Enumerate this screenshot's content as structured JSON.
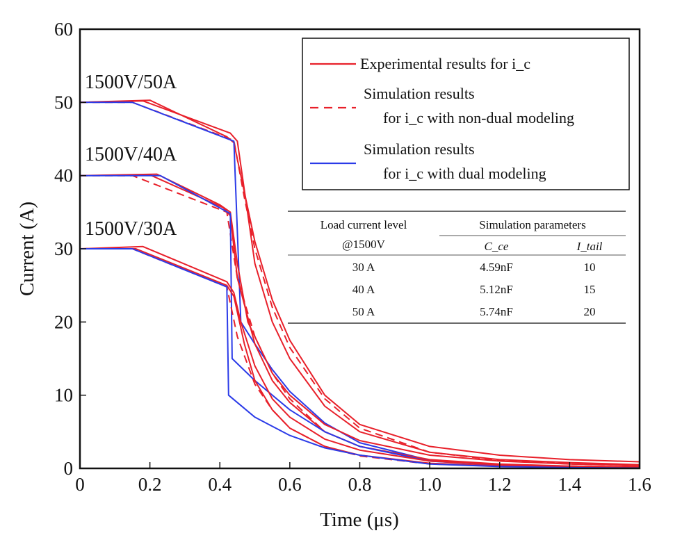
{
  "chart_data": {
    "type": "line",
    "xlabel": "Time (μs)",
    "ylabel": "Current (A)",
    "xlim": [
      0,
      1.6
    ],
    "ylim": [
      0,
      60
    ],
    "xticks": [
      "0",
      "0.2",
      "0.4",
      "0.6",
      "0.8",
      "1.0",
      "1.2",
      "1.4",
      "1.6"
    ],
    "yticks": [
      "0",
      "10",
      "20",
      "30",
      "40",
      "50",
      "60"
    ],
    "grid": false,
    "legend_position": "top-right",
    "legend": [
      {
        "lines": [
          "Experimental results for i_c"
        ],
        "color": "#e8202a",
        "style": "solid"
      },
      {
        "lines": [
          "Simulation results",
          "for i_c with non-dual modeling"
        ],
        "color": "#e8202a",
        "style": "dashed"
      },
      {
        "lines": [
          "Simulation results",
          "for i_c with dual modeling"
        ],
        "color": "#2b3be8",
        "style": "solid"
      }
    ],
    "annotations": [
      "1500V/50A",
      "1500V/40A",
      "1500V/30A"
    ],
    "table": {
      "header_left": [
        "Load current level",
        "@1500V"
      ],
      "header_group": "Simulation parameters",
      "columns": [
        "C_ce",
        "I_tail"
      ],
      "rows": [
        [
          "30 A",
          "4.59nF",
          "10"
        ],
        [
          "40 A",
          "5.12nF",
          "15"
        ],
        [
          "50 A",
          "5.74nF",
          "20"
        ]
      ]
    },
    "series": [
      {
        "color": "#e8202a",
        "style": "solid",
        "x": [
          0,
          0.2,
          0.42,
          0.44,
          0.46,
          0.5,
          0.55,
          0.6,
          0.7,
          0.8,
          1.0,
          1.2,
          1.4,
          1.6
        ],
        "y": [
          50,
          50.3,
          45.3,
          44.5,
          40,
          31,
          23,
          17.5,
          10,
          6,
          3,
          1.8,
          1.2,
          0.9
        ]
      },
      {
        "color": "#e8202a",
        "style": "solid",
        "x": [
          0,
          0.18,
          0.43,
          0.45,
          0.47,
          0.5,
          0.55,
          0.6,
          0.7,
          0.8,
          1.0,
          1.2,
          1.4,
          1.6
        ],
        "y": [
          50,
          50.2,
          45.8,
          44.7,
          38,
          28,
          20,
          15,
          8.5,
          5,
          2.2,
          1.2,
          0.8,
          0.5
        ]
      },
      {
        "color": "#e8202a",
        "style": "dashed",
        "x": [
          0,
          0.15,
          0.44,
          0.47,
          0.5,
          0.55,
          0.6,
          0.7,
          0.8,
          1.0,
          1.2,
          1.4,
          1.6
        ],
        "y": [
          50,
          50,
          44.8,
          37,
          30,
          22,
          16.5,
          9.5,
          5.5,
          2.2,
          1.1,
          0.6,
          0.4
        ]
      },
      {
        "color": "#2b3be8",
        "style": "solid",
        "x": [
          0,
          0.15,
          0.44,
          0.46,
          0.5,
          0.55,
          0.6,
          0.7,
          0.8,
          1.0,
          1.2,
          1.4,
          1.6
        ],
        "y": [
          50,
          50,
          44.7,
          20,
          17,
          13.5,
          10.5,
          6.2,
          3.5,
          1.1,
          0.4,
          0.2,
          0.1
        ]
      },
      {
        "color": "#e8202a",
        "style": "solid",
        "x": [
          0,
          0.22,
          0.4,
          0.43,
          0.45,
          0.48,
          0.55,
          0.6,
          0.7,
          0.8,
          1.0,
          1.2,
          1.4,
          1.6
        ],
        "y": [
          40,
          40.2,
          36,
          35,
          28,
          20,
          13,
          10,
          6,
          3.8,
          1.8,
          1.0,
          0.6,
          0.4
        ]
      },
      {
        "color": "#e8202a",
        "style": "solid",
        "x": [
          0,
          0.2,
          0.41,
          0.43,
          0.45,
          0.5,
          0.55,
          0.6,
          0.7,
          0.8,
          1.0,
          1.2,
          1.4,
          1.6
        ],
        "y": [
          40,
          40.1,
          35.6,
          34.5,
          26,
          17,
          12,
          9,
          5,
          3,
          1.2,
          0.6,
          0.3,
          0.2
        ]
      },
      {
        "color": "#e8202a",
        "style": "dashed",
        "x": [
          0,
          0.15,
          0.42,
          0.45,
          0.5,
          0.55,
          0.6,
          0.7,
          0.8,
          1.0,
          1.2,
          1.4,
          1.6
        ],
        "y": [
          40,
          40,
          35,
          26,
          18,
          13,
          9.5,
          5,
          3,
          1.1,
          0.5,
          0.3,
          0.2
        ]
      },
      {
        "color": "#2b3be8",
        "style": "solid",
        "x": [
          0,
          0.23,
          0.43,
          0.435,
          0.5,
          0.6,
          0.7,
          0.8,
          1.0,
          1.2,
          1.4,
          1.6
        ],
        "y": [
          40,
          40,
          34.8,
          15,
          12,
          8,
          5,
          3,
          1,
          0.4,
          0.2,
          0.1
        ]
      },
      {
        "color": "#e8202a",
        "style": "solid",
        "x": [
          0,
          0.18,
          0.42,
          0.44,
          0.46,
          0.5,
          0.55,
          0.6,
          0.7,
          0.8,
          1.0,
          1.2,
          1.4,
          1.6
        ],
        "y": [
          30,
          30.3,
          25.5,
          24,
          20,
          14,
          9.5,
          7,
          4,
          2.5,
          1.0,
          0.5,
          0.3,
          0.2
        ]
      },
      {
        "color": "#e8202a",
        "style": "solid",
        "x": [
          0,
          0.16,
          0.42,
          0.44,
          0.47,
          0.5,
          0.55,
          0.6,
          0.7,
          0.8,
          1.0,
          1.2,
          1.4,
          1.6
        ],
        "y": [
          30,
          30,
          25,
          23.5,
          17,
          12,
          8,
          5.5,
          3,
          1.8,
          0.7,
          0.3,
          0.2,
          0.1
        ]
      },
      {
        "color": "#e8202a",
        "style": "dashed",
        "x": [
          0,
          0.15,
          0.42,
          0.45,
          0.5,
          0.55,
          0.6,
          0.7,
          0.8,
          1.0,
          1.2,
          1.4,
          1.6
        ],
        "y": [
          30,
          30,
          24.8,
          18,
          11.5,
          8,
          5.5,
          3,
          1.7,
          0.6,
          0.3,
          0.2,
          0.1
        ]
      },
      {
        "color": "#2b3be8",
        "style": "solid",
        "x": [
          0,
          0.15,
          0.42,
          0.425,
          0.5,
          0.6,
          0.7,
          0.8,
          1.0,
          1.2,
          1.4,
          1.6
        ],
        "y": [
          30,
          30,
          24.8,
          10,
          7,
          4.5,
          2.8,
          1.8,
          0.6,
          0.25,
          0.1,
          0.05
        ]
      }
    ]
  }
}
